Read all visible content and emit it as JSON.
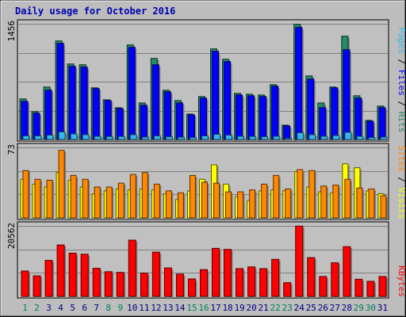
{
  "chart_data": [
    {
      "type": "bar",
      "title": "Daily usage for October 2016",
      "categories": [
        "1",
        "2",
        "3",
        "4",
        "5",
        "6",
        "7",
        "8",
        "9",
        "10",
        "11",
        "12",
        "13",
        "14",
        "15",
        "16",
        "17",
        "18",
        "19",
        "20",
        "21",
        "22",
        "23",
        "24",
        "25",
        "26",
        "27",
        "28",
        "29",
        "30",
        "31"
      ],
      "weekend_days": [
        "1",
        "2",
        "8",
        "9",
        "15",
        "16",
        "22",
        "23",
        "29",
        "30"
      ],
      "ylim": [
        0,
        1456
      ],
      "ylabel_top_tick": "1456",
      "right_axis_labels": [
        "Pages",
        "Files",
        "Hits"
      ],
      "grid": true,
      "series": [
        {
          "name": "Hits",
          "color": "#228b68",
          "values": [
            510,
            350,
            660,
            1240,
            950,
            940,
            650,
            500,
            400,
            1190,
            460,
            1020,
            620,
            490,
            320,
            540,
            1140,
            1010,
            580,
            570,
            560,
            690,
            180,
            1450,
            800,
            460,
            660,
            1300,
            550,
            240,
            420
          ]
        },
        {
          "name": "Files",
          "color": "#0000ff",
          "values": [
            480,
            330,
            620,
            1210,
            920,
            910,
            640,
            490,
            390,
            1160,
            430,
            940,
            600,
            460,
            310,
            520,
            1110,
            980,
            560,
            550,
            540,
            670,
            170,
            1410,
            760,
            400,
            650,
            1130,
            520,
            230,
            400
          ]
        },
        {
          "name": "Pages",
          "color": "#33b8f0",
          "values": [
            45,
            45,
            55,
            95,
            70,
            60,
            40,
            38,
            38,
            60,
            30,
            45,
            35,
            28,
            25,
            45,
            65,
            55,
            40,
            38,
            35,
            40,
            15,
            85,
            60,
            40,
            50,
            90,
            40,
            25,
            30
          ]
        }
      ]
    },
    {
      "type": "bar",
      "ylim": [
        0,
        73
      ],
      "ylabel_top_tick": "73",
      "right_axis_labels": [
        "Sites",
        "Visits"
      ],
      "grid": true,
      "series": [
        {
          "name": "Visits",
          "color": "#ffff00",
          "values": [
            40,
            35,
            32,
            47,
            39,
            32,
            25,
            28,
            30,
            29,
            30,
            29,
            25,
            19,
            28,
            40,
            55,
            35,
            22,
            18,
            28,
            29,
            28,
            48,
            32,
            27,
            26,
            56,
            52,
            28,
            25
          ]
        },
        {
          "name": "Sites",
          "color": "#ff8800",
          "values": [
            49,
            40,
            39,
            70,
            44,
            40,
            32,
            32,
            36,
            45,
            47,
            35,
            28,
            26,
            44,
            37,
            36,
            27,
            27,
            29,
            35,
            44,
            30,
            50,
            49,
            33,
            34,
            40,
            31,
            30,
            23
          ]
        }
      ]
    },
    {
      "type": "bar",
      "ylim": [
        0,
        20562
      ],
      "ylabel_top_tick": "20562",
      "right_axis_labels": [
        "KBytes"
      ],
      "grid": true,
      "series": [
        {
          "name": "KBytes",
          "color": "#ff0000",
          "values": [
            7400,
            6000,
            10500,
            15000,
            12600,
            12300,
            8200,
            7200,
            7000,
            16400,
            6800,
            12900,
            8300,
            6500,
            5100,
            7800,
            14000,
            13700,
            8100,
            8600,
            8100,
            10800,
            4000,
            20500,
            11300,
            5800,
            9800,
            14500,
            5000,
            4400,
            5800
          ]
        }
      ]
    }
  ]
}
